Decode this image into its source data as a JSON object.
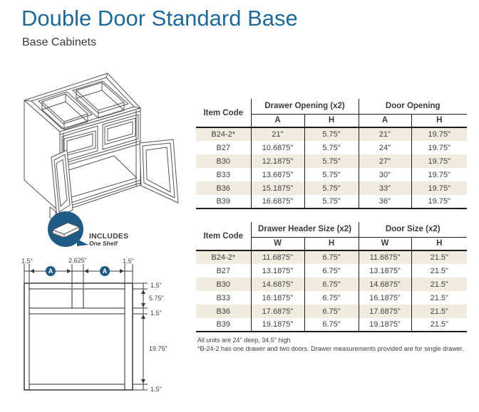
{
  "header": {
    "title": "Double Door Standard Base",
    "subtitle": "Base Cabinets"
  },
  "badge": {
    "label": "INCLUDES",
    "sublabel": "One Shelf"
  },
  "spec_table_openings": {
    "item_code_header": "Item Code",
    "groups": [
      "Drawer Opening (x2)",
      "Door Opening"
    ],
    "sub_headers": [
      "A",
      "H",
      "A",
      "H"
    ],
    "rows": [
      [
        "B24-2*",
        "21\"",
        "5.75\"",
        "21\"",
        "19.75\""
      ],
      [
        "B27",
        "10.6875\"",
        "5.75\"",
        "24\"",
        "19.75\""
      ],
      [
        "B30",
        "12.1875\"",
        "5.75\"",
        "27\"",
        "19.75\""
      ],
      [
        "B33",
        "13.6875\"",
        "5.75\"",
        "30\"",
        "19.75\""
      ],
      [
        "B36",
        "15.1875\"",
        "5.75\"",
        "33\"",
        "19.75\""
      ],
      [
        "B39",
        "16.6875\"",
        "5.75\"",
        "36\"",
        "19.75\""
      ]
    ]
  },
  "spec_table_sizes": {
    "item_code_header": "Item Code",
    "groups": [
      "Drawer Header Size (x2)",
      "Door Size (x2)"
    ],
    "sub_headers": [
      "W",
      "H",
      "W",
      "H"
    ],
    "rows": [
      [
        "B24-2*",
        "11.6875\"",
        "6.75\"",
        "11.6875\"",
        "21.5\""
      ],
      [
        "B27",
        "13.1875\"",
        "6.75\"",
        "13.1875\"",
        "21.5\""
      ],
      [
        "B30",
        "14.6875\"",
        "6.75\"",
        "14.6875\"",
        "21.5\""
      ],
      [
        "B33",
        "16.1875\"",
        "6.75\"",
        "16.1875\"",
        "21.5\""
      ],
      [
        "B36",
        "17.6875\"",
        "6.75\"",
        "17.6875\"",
        "21.5\""
      ],
      [
        "B39",
        "19.1875\"",
        "6.75\"",
        "19.1875\"",
        "21.5\""
      ]
    ]
  },
  "notes": [
    "All units are 24\" deep, 34.5\" high",
    "*B-24-2 has one drawer and two doors. Drawer measurements provided are for single drawer."
  ],
  "diagram": {
    "marker": "A",
    "top_dims": [
      "1.5\"",
      "2.625\"",
      "1.5\""
    ],
    "side_dims": [
      "1.5\"",
      "5.75\"",
      "1.5\"",
      "19.75\"",
      "1.5\""
    ]
  },
  "colors": {
    "accent_blue": "#1b6a9b",
    "badge_blue": "#1e5c86",
    "row_beige": "#f1ece0"
  }
}
